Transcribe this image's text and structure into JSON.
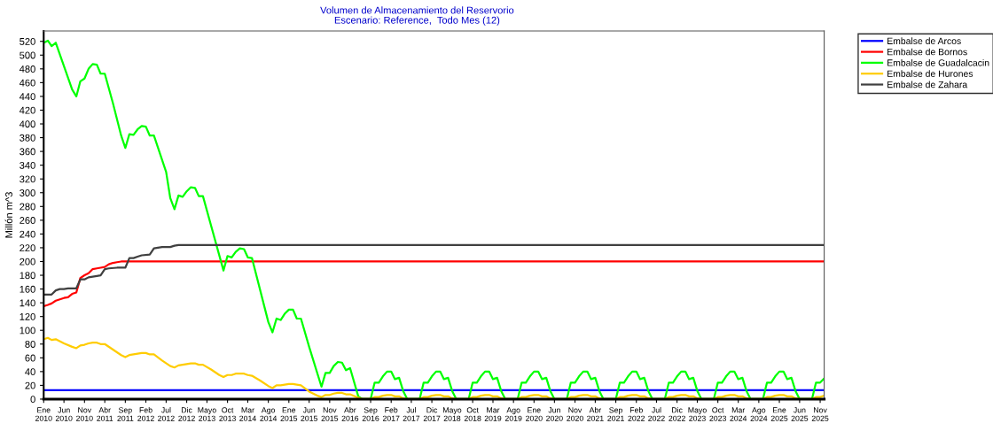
{
  "chart_data": {
    "type": "line",
    "title": "Volumen de Almacenamiento del Reservorio",
    "subtitle": "Escenario: Reference,  Todo Mes (12)",
    "ylabel": "Millón m^3",
    "xlim": [
      "2010-01",
      "2025-12"
    ],
    "ylim": [
      0,
      535
    ],
    "yticks": [
      0,
      20,
      40,
      60,
      80,
      100,
      120,
      140,
      160,
      180,
      200,
      220,
      240,
      260,
      280,
      300,
      320,
      340,
      360,
      380,
      400,
      420,
      440,
      460,
      480,
      500,
      520
    ],
    "xticks": [
      {
        "value": "2010-01",
        "label": "Ene\n2010"
      },
      {
        "value": "2010-06",
        "label": "Jun\n2010"
      },
      {
        "value": "2010-11",
        "label": "Nov\n2010"
      },
      {
        "value": "2011-04",
        "label": "Abr\n2011"
      },
      {
        "value": "2011-09",
        "label": "Sep\n2011"
      },
      {
        "value": "2012-02",
        "label": "Feb\n2012"
      },
      {
        "value": "2012-07",
        "label": "Jul\n2012"
      },
      {
        "value": "2012-12",
        "label": "Dic\n2012"
      },
      {
        "value": "2013-05",
        "label": "Mayo\n2013"
      },
      {
        "value": "2013-10",
        "label": "Oct\n2013"
      },
      {
        "value": "2014-03",
        "label": "Mar\n2014"
      },
      {
        "value": "2014-08",
        "label": "Ago\n2014"
      },
      {
        "value": "2015-01",
        "label": "Ene\n2015"
      },
      {
        "value": "2015-06",
        "label": "Jun\n2015"
      },
      {
        "value": "2015-11",
        "label": "Nov\n2015"
      },
      {
        "value": "2016-04",
        "label": "Abr\n2016"
      },
      {
        "value": "2016-09",
        "label": "Sep\n2016"
      },
      {
        "value": "2017-02",
        "label": "Feb\n2017"
      },
      {
        "value": "2017-07",
        "label": "Jul\n2017"
      },
      {
        "value": "2017-12",
        "label": "Dic\n2017"
      },
      {
        "value": "2018-05",
        "label": "Mayo\n2018"
      },
      {
        "value": "2018-10",
        "label": "Oct\n2018"
      },
      {
        "value": "2019-03",
        "label": "Mar\n2019"
      },
      {
        "value": "2019-08",
        "label": "Ago\n2019"
      },
      {
        "value": "2020-01",
        "label": "Ene\n2020"
      },
      {
        "value": "2020-06",
        "label": "Jun\n2020"
      },
      {
        "value": "2020-11",
        "label": "Nov\n2020"
      },
      {
        "value": "2021-04",
        "label": "Abr\n2021"
      },
      {
        "value": "2021-09",
        "label": "Sep\n2021"
      },
      {
        "value": "2022-02",
        "label": "Feb\n2022"
      },
      {
        "value": "2022-07",
        "label": "Jul\n2022"
      },
      {
        "value": "2022-12",
        "label": "Dic\n2022"
      },
      {
        "value": "2023-05",
        "label": "Mayo\n2023"
      },
      {
        "value": "2023-10",
        "label": "Oct\n2023"
      },
      {
        "value": "2024-03",
        "label": "Mar\n2024"
      },
      {
        "value": "2024-08",
        "label": "Ago\n2024"
      },
      {
        "value": "2025-01",
        "label": "Ene\n2025"
      },
      {
        "value": "2025-06",
        "label": "Jun\n2025"
      },
      {
        "value": "2025-11",
        "label": "Nov\n2025"
      }
    ],
    "grid": false,
    "legend": "top right",
    "marker": "none",
    "line_style": "solid",
    "series": [
      {
        "name": "Embalse de Arcos",
        "color": "#0000ff",
        "x": [
          "2010-01",
          "2025-12"
        ],
        "values": [
          13,
          13
        ]
      },
      {
        "name": "Embalse de Bornos",
        "color": "#ff0000",
        "x": [
          "2010-01",
          "2010-02",
          "2010-03",
          "2010-04",
          "2010-06",
          "2010-07",
          "2010-08",
          "2010-09",
          "2010-10",
          "2010-11",
          "2010-12",
          "2011-01",
          "2011-02",
          "2011-03",
          "2011-04",
          "2011-05",
          "2011-06",
          "2011-07",
          "2011-08",
          "2025-12"
        ],
        "values": [
          135,
          137,
          139,
          143,
          147,
          148,
          153,
          155,
          176,
          180,
          183,
          189,
          190,
          191,
          192,
          196,
          198,
          199,
          200,
          200
        ]
      },
      {
        "name": "Embalse de Guadalcacin",
        "color": "#00ff00",
        "x": [
          "2010-01",
          "2010-02",
          "2010-03",
          "2010-04",
          "2010-08",
          "2010-09",
          "2010-10",
          "2010-11",
          "2010-12",
          "2011-01",
          "2011-02",
          "2011-03",
          "2011-04",
          "2011-06",
          "2011-08",
          "2011-09",
          "2011-10",
          "2011-11",
          "2011-12",
          "2012-01",
          "2012-02",
          "2012-03",
          "2012-04",
          "2012-07",
          "2012-08",
          "2012-09",
          "2012-10",
          "2012-11",
          "2012-12",
          "2013-01",
          "2013-02",
          "2013-03",
          "2013-04",
          "2013-09",
          "2013-10",
          "2013-11",
          "2013-12",
          "2014-01",
          "2014-02",
          "2014-03",
          "2014-04",
          "2014-08",
          "2014-09",
          "2014-10",
          "2014-11",
          "2014-12",
          "2015-01",
          "2015-02",
          "2015-03",
          "2015-04",
          "2015-06",
          "2015-09",
          "2015-10",
          "2015-11",
          "2015-12",
          "2016-01",
          "2016-02",
          "2016-03",
          "2016-04",
          "2016-06",
          "2016-07",
          "2016-09",
          "2016-10",
          "2016-11",
          "2016-12",
          "2017-01",
          "2017-02",
          "2017-03",
          "2017-04",
          "2017-05",
          "2017-06",
          "2017-09",
          "2017-10",
          "2017-11",
          "2017-12",
          "2018-01",
          "2018-02",
          "2018-03",
          "2018-04",
          "2018-05",
          "2018-06",
          "2018-09",
          "2018-10",
          "2018-11",
          "2018-12",
          "2019-01",
          "2019-02",
          "2019-03",
          "2019-04",
          "2019-05",
          "2019-06",
          "2019-09",
          "2019-10",
          "2019-11",
          "2019-12",
          "2020-01",
          "2020-02",
          "2020-03",
          "2020-04",
          "2020-05",
          "2020-06",
          "2020-09",
          "2020-10",
          "2020-11",
          "2020-12",
          "2021-01",
          "2021-02",
          "2021-03",
          "2021-04",
          "2021-05",
          "2021-06",
          "2021-09",
          "2021-10",
          "2021-11",
          "2021-12",
          "2022-01",
          "2022-02",
          "2022-03",
          "2022-04",
          "2022-05",
          "2022-06",
          "2022-09",
          "2022-10",
          "2022-11",
          "2022-12",
          "2023-01",
          "2023-02",
          "2023-03",
          "2023-04",
          "2023-05",
          "2023-06",
          "2023-09",
          "2023-10",
          "2023-11",
          "2023-12",
          "2024-01",
          "2024-02",
          "2024-03",
          "2024-04",
          "2024-05",
          "2024-06",
          "2024-09",
          "2024-10",
          "2024-11",
          "2024-12",
          "2025-01",
          "2025-02",
          "2025-03",
          "2025-04",
          "2025-05",
          "2025-06",
          "2025-09",
          "2025-10",
          "2025-11",
          "2025-12"
        ],
        "values": [
          518,
          521,
          513,
          518,
          450,
          440,
          462,
          466,
          480,
          487,
          486,
          473,
          473,
          430,
          383,
          365,
          385,
          384,
          392,
          397,
          396,
          383,
          383,
          330,
          292,
          276,
          296,
          294,
          302,
          308,
          307,
          295,
          295,
          187,
          208,
          206,
          214,
          219,
          218,
          206,
          205,
          112,
          97,
          117,
          115,
          124,
          130,
          130,
          117,
          117,
          76,
          18,
          38,
          38,
          48,
          54,
          53,
          42,
          45,
          4,
          0,
          0,
          24,
          24,
          33,
          40,
          40,
          29,
          31,
          12,
          0,
          0,
          24,
          24,
          33,
          40,
          40,
          29,
          31,
          12,
          0,
          0,
          24,
          24,
          33,
          40,
          40,
          29,
          31,
          12,
          0,
          0,
          24,
          24,
          33,
          40,
          40,
          29,
          31,
          12,
          0,
          0,
          24,
          24,
          33,
          40,
          40,
          29,
          31,
          12,
          0,
          0,
          24,
          24,
          33,
          40,
          40,
          29,
          31,
          12,
          0,
          0,
          24,
          24,
          33,
          40,
          40,
          29,
          31,
          12,
          0,
          0,
          24,
          24,
          33,
          40,
          40,
          29,
          31,
          12,
          0,
          0,
          24,
          24,
          33,
          40,
          40,
          29,
          31,
          12,
          0,
          0,
          24,
          24,
          30
        ]
      },
      {
        "name": "Embalse de Hurones",
        "color": "#ffcc00",
        "x": [
          "2010-01",
          "2010-02",
          "2010-03",
          "2010-04",
          "2010-06",
          "2010-08",
          "2010-09",
          "2010-10",
          "2010-11",
          "2010-12",
          "2011-01",
          "2011-02",
          "2011-03",
          "2011-04",
          "2011-06",
          "2011-08",
          "2011-09",
          "2011-10",
          "2011-11",
          "2012-01",
          "2012-02",
          "2012-03",
          "2012-04",
          "2012-06",
          "2012-08",
          "2012-09",
          "2012-10",
          "2012-11",
          "2013-01",
          "2013-02",
          "2013-03",
          "2013-04",
          "2013-06",
          "2013-08",
          "2013-09",
          "2013-10",
          "2013-11",
          "2013-12",
          "2014-01",
          "2014-02",
          "2014-03",
          "2014-04",
          "2014-06",
          "2014-08",
          "2014-09",
          "2014-10",
          "2014-11",
          "2015-01",
          "2015-02",
          "2015-03",
          "2015-04",
          "2015-06",
          "2015-08",
          "2015-09",
          "2015-10",
          "2015-11",
          "2015-12",
          "2016-01",
          "2016-02",
          "2016-03",
          "2016-04",
          "2016-06",
          "2016-07",
          "2016-09",
          "2016-10",
          "2016-11",
          "2016-12",
          "2017-01",
          "2017-02",
          "2017-03",
          "2017-04",
          "2017-05",
          "2017-06",
          "2017-09",
          "2017-10",
          "2017-11",
          "2017-12",
          "2018-01",
          "2018-02",
          "2018-03",
          "2018-04",
          "2018-05",
          "2018-06",
          "2018-09",
          "2018-10",
          "2018-11",
          "2018-12",
          "2019-01",
          "2019-02",
          "2019-03",
          "2019-04",
          "2019-05",
          "2019-06",
          "2019-09",
          "2019-10",
          "2019-11",
          "2019-12",
          "2020-01",
          "2020-02",
          "2020-03",
          "2020-04",
          "2020-05",
          "2020-06",
          "2020-09",
          "2020-10",
          "2020-11",
          "2020-12",
          "2021-01",
          "2021-02",
          "2021-03",
          "2021-04",
          "2021-05",
          "2021-06",
          "2021-09",
          "2021-10",
          "2021-11",
          "2021-12",
          "2022-01",
          "2022-02",
          "2022-03",
          "2022-04",
          "2022-05",
          "2022-06",
          "2022-09",
          "2022-10",
          "2022-11",
          "2022-12",
          "2023-01",
          "2023-02",
          "2023-03",
          "2023-04",
          "2023-05",
          "2023-06",
          "2023-09",
          "2023-10",
          "2023-11",
          "2023-12",
          "2024-01",
          "2024-02",
          "2024-03",
          "2024-04",
          "2024-05",
          "2024-06",
          "2024-09",
          "2024-10",
          "2024-11",
          "2024-12",
          "2025-01",
          "2025-02",
          "2025-03",
          "2025-04",
          "2025-05",
          "2025-06",
          "2025-09",
          "2025-10",
          "2025-11",
          "2025-12"
        ],
        "values": [
          87,
          89,
          86,
          87,
          81,
          76,
          74,
          78,
          79,
          81,
          82,
          82,
          80,
          80,
          72,
          64,
          61,
          64,
          65,
          67,
          67,
          65,
          65,
          56,
          48,
          46,
          49,
          50,
          52,
          52,
          50,
          50,
          43,
          35,
          32,
          35,
          35,
          37,
          37,
          37,
          35,
          34,
          27,
          19,
          16,
          20,
          20,
          22,
          22,
          21,
          20,
          11,
          5,
          3,
          6,
          6,
          8,
          9,
          9,
          7,
          7,
          2,
          0,
          0,
          3,
          3,
          5,
          6,
          6,
          4,
          4,
          1,
          0,
          0,
          3,
          3,
          5,
          6,
          6,
          4,
          4,
          1,
          0,
          0,
          3,
          3,
          5,
          6,
          6,
          4,
          4,
          1,
          0,
          0,
          3,
          3,
          5,
          6,
          6,
          4,
          4,
          1,
          0,
          0,
          3,
          3,
          5,
          6,
          6,
          4,
          4,
          1,
          0,
          0,
          3,
          3,
          5,
          6,
          6,
          4,
          4,
          1,
          0,
          0,
          3,
          3,
          5,
          6,
          6,
          4,
          4,
          1,
          0,
          0,
          3,
          3,
          5,
          6,
          6,
          4,
          4,
          1,
          0,
          0,
          3,
          3,
          5,
          6,
          6,
          4,
          4,
          1,
          0,
          0,
          3,
          3,
          5
        ]
      },
      {
        "name": "Embalse de Zahara",
        "color": "#404040",
        "x": [
          "2010-01",
          "2010-03",
          "2010-04",
          "2010-05",
          "2010-06",
          "2010-07",
          "2010-09",
          "2010-10",
          "2010-11",
          "2010-12",
          "2011-01",
          "2011-02",
          "2011-03",
          "2011-04",
          "2011-05",
          "2011-07",
          "2011-09",
          "2011-10",
          "2011-11",
          "2011-12",
          "2012-01",
          "2012-03",
          "2012-04",
          "2012-05",
          "2012-06",
          "2012-08",
          "2012-09",
          "2012-10",
          "2025-12"
        ],
        "values": [
          152,
          152,
          158,
          160,
          160,
          161,
          161,
          174,
          174,
          177,
          178,
          179,
          180,
          189,
          190,
          191,
          191,
          205,
          205,
          207,
          209,
          210,
          219,
          220,
          221,
          221,
          223,
          224,
          224
        ]
      }
    ]
  }
}
